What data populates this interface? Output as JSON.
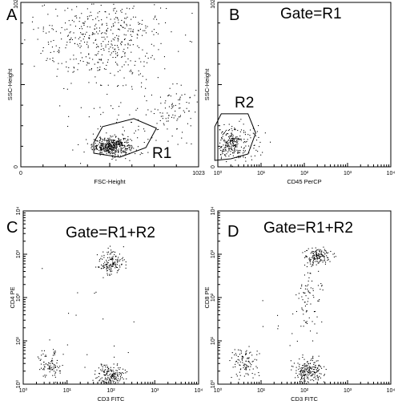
{
  "chart_data": [
    {
      "type": "scatter",
      "panel": "A",
      "title": "",
      "xlabel": "FSC-Height",
      "ylabel": "SSC-Height",
      "xscale": "linear",
      "yscale": "linear",
      "xlim": [
        0,
        1023
      ],
      "ylim": [
        0,
        1023
      ],
      "x_tick_labels": [
        {
          "v": 0,
          "t": "0"
        },
        {
          "v": 1023,
          "t": "1023"
        }
      ],
      "y_tick_labels": [
        {
          "v": 0,
          "t": "0"
        },
        {
          "v": 1023,
          "t": "1023"
        }
      ],
      "gate": {
        "label": "R1",
        "inner_label": "R1",
        "polygon": [
          [
            420,
            85
          ],
          [
            570,
            60
          ],
          [
            720,
            120
          ],
          [
            780,
            240
          ],
          [
            650,
            300
          ],
          [
            470,
            250
          ],
          [
            420,
            150
          ]
        ]
      },
      "clusters": [
        {
          "cx": 520,
          "cy": 130,
          "sx": 55,
          "sy": 28,
          "n": 420
        },
        {
          "cx": 470,
          "cy": 800,
          "sx": 190,
          "sy": 140,
          "n": 480
        },
        {
          "cx": 900,
          "cy": 350,
          "sx": 70,
          "sy": 70,
          "n": 70
        },
        {
          "cx": 650,
          "cy": 300,
          "sx": 160,
          "sy": 140,
          "n": 90
        }
      ],
      "grid": false,
      "legend": "none"
    },
    {
      "type": "scatter",
      "panel": "B",
      "title": "Gate=R1",
      "xlabel": "CD45 PerCP",
      "ylabel": "SSC-Height",
      "xscale": "log",
      "yscale": "linear",
      "xlim": [
        1,
        10000
      ],
      "ylim": [
        0,
        1023
      ],
      "x_tick_labels": [
        {
          "v": 1,
          "t": "10⁰"
        },
        {
          "v": 10,
          "t": "10¹"
        },
        {
          "v": 100,
          "t": "10²"
        },
        {
          "v": 1000,
          "t": "10³"
        },
        {
          "v": 10000,
          "t": "10⁴"
        }
      ],
      "y_tick_labels": [
        {
          "v": 0,
          "t": "0"
        },
        {
          "v": 1023,
          "t": "1023"
        }
      ],
      "gate": {
        "label": "R2",
        "inner_label": "R2",
        "polygon": [
          [
            0.85,
            40
          ],
          [
            2.0,
            50
          ],
          [
            5.0,
            80
          ],
          [
            7.5,
            210
          ],
          [
            5.0,
            330
          ],
          [
            1.2,
            330
          ],
          [
            0.85,
            250
          ]
        ]
      },
      "clusters": [
        {
          "cx_log": 0.25,
          "cy": 150,
          "sx_log": 0.22,
          "sy": 55,
          "n": 260
        },
        {
          "cx_log": 0.8,
          "cy": 140,
          "sx_log": 0.3,
          "sy": 60,
          "n": 30
        }
      ],
      "grid": false,
      "legend": "none"
    },
    {
      "type": "scatter",
      "panel": "C",
      "title": "Gate=R1+R2",
      "xlabel": "CD3 FITC",
      "ylabel": "CD4 PE",
      "xscale": "log",
      "yscale": "log",
      "xlim": [
        1,
        10000
      ],
      "ylim": [
        1,
        10000
      ],
      "x_tick_labels": [
        {
          "v": 1,
          "t": "10⁰"
        },
        {
          "v": 10,
          "t": "10¹"
        },
        {
          "v": 100,
          "t": "10²"
        },
        {
          "v": 1000,
          "t": "10³"
        },
        {
          "v": 10000,
          "t": "10⁴"
        }
      ],
      "y_tick_labels": [
        {
          "v": 1,
          "t": "10⁰"
        },
        {
          "v": 10,
          "t": "10¹"
        },
        {
          "v": 100,
          "t": "10²"
        },
        {
          "v": 1000,
          "t": "10³"
        },
        {
          "v": 10000,
          "t": "10⁴"
        }
      ],
      "clusters": [
        {
          "cx_log": 2.0,
          "cy_log": 2.8,
          "sx_log": 0.15,
          "sy_log": 0.15,
          "n": 150
        },
        {
          "cx_log": 2.0,
          "cy_log": 0.2,
          "sx_log": 0.16,
          "sy_log": 0.14,
          "n": 180
        },
        {
          "cx_log": 0.6,
          "cy_log": 0.45,
          "sx_log": 0.14,
          "sy_log": 0.18,
          "n": 90
        },
        {
          "cx_log": 1.5,
          "cy_log": 1.5,
          "sx_log": 0.5,
          "sy_log": 0.6,
          "n": 14
        }
      ],
      "grid": false,
      "legend": "none"
    },
    {
      "type": "scatter",
      "panel": "D",
      "title": "Gate=R1+R2",
      "xlabel": "CD3 FITC",
      "ylabel": "CD8 PE",
      "xscale": "log",
      "yscale": "log",
      "xlim": [
        1,
        10000
      ],
      "ylim": [
        1,
        10000
      ],
      "x_tick_labels": [
        {
          "v": 1,
          "t": "10⁰"
        },
        {
          "v": 10,
          "t": "10¹"
        },
        {
          "v": 100,
          "t": "10²"
        },
        {
          "v": 1000,
          "t": "10³"
        },
        {
          "v": 10000,
          "t": "10⁴"
        }
      ],
      "y_tick_labels": [
        {
          "v": 1,
          "t": "10⁰"
        },
        {
          "v": 10,
          "t": "10¹"
        },
        {
          "v": 100,
          "t": "10²"
        },
        {
          "v": 1000,
          "t": "10³"
        },
        {
          "v": 10000,
          "t": "10⁴"
        }
      ],
      "clusters": [
        {
          "cx_log": 2.3,
          "cy_log": 2.95,
          "sx_log": 0.15,
          "sy_log": 0.1,
          "n": 140
        },
        {
          "cx_log": 2.1,
          "cy_log": 2.0,
          "sx_log": 0.12,
          "sy_log": 0.45,
          "n": 80
        },
        {
          "cx_log": 2.1,
          "cy_log": 0.3,
          "sx_log": 0.17,
          "sy_log": 0.16,
          "n": 200
        },
        {
          "cx_log": 0.6,
          "cy_log": 0.5,
          "sx_log": 0.15,
          "sy_log": 0.18,
          "n": 100
        },
        {
          "cx_log": 1.3,
          "cy_log": 1.3,
          "sx_log": 0.4,
          "sy_log": 0.4,
          "n": 12
        }
      ],
      "grid": false,
      "legend": "none"
    }
  ]
}
